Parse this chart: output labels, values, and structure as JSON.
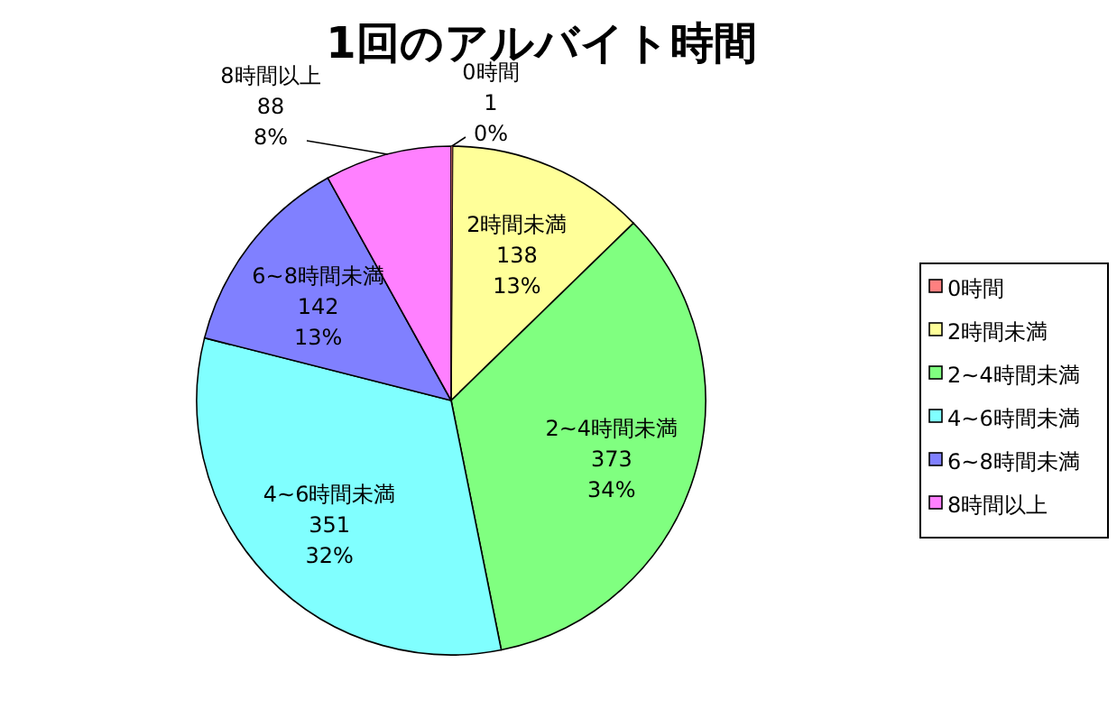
{
  "chart_data": {
    "type": "pie",
    "title": "1回のアルバイト時間",
    "categories": [
      "0時間",
      "2時間未満",
      "2~4時間未満",
      "4~6時間未満",
      "6~8時間未満",
      "8時間以上"
    ],
    "values": [
      1,
      138,
      373,
      351,
      142,
      88
    ],
    "value_labels": [
      "1",
      "138",
      "373",
      "351",
      "142",
      "88"
    ],
    "annotations": [
      {
        "text": "0%",
        "x": "0時間"
      },
      {
        "text": "13%",
        "x": "2時間未満"
      },
      {
        "text": "34%",
        "x": "2~4時間未満"
      },
      {
        "text": "32%",
        "x": "4~6時間未満"
      },
      {
        "text": "13%",
        "x": "6~8時間未満"
      },
      {
        "text": "8%",
        "x": "8時間以上"
      }
    ],
    "colors": [
      "#ff8080",
      "#ffff99",
      "#80ff80",
      "#80ffff",
      "#8080ff",
      "#ff80ff"
    ],
    "legend": "right"
  }
}
